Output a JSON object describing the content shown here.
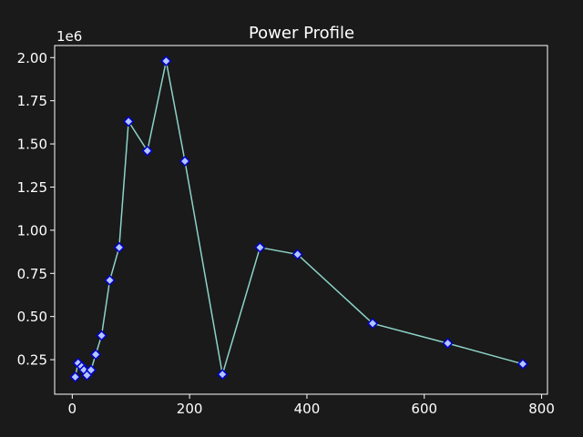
{
  "chart_data": {
    "type": "line",
    "title": "Power Profile",
    "xlabel": "",
    "ylabel": "",
    "y_multiplier_label": "1e6",
    "xlim": [
      -30,
      810
    ],
    "ylim": [
      50000,
      2070000
    ],
    "x_ticks": [
      0,
      200,
      400,
      600,
      800
    ],
    "x_tick_labels": [
      "0",
      "200",
      "400",
      "600",
      "800"
    ],
    "y_ticks": [
      250000,
      500000,
      750000,
      1000000,
      1250000,
      1500000,
      1750000,
      2000000
    ],
    "y_tick_labels": [
      "0.25",
      "0.50",
      "0.75",
      "1.00",
      "1.25",
      "1.50",
      "1.75",
      "2.00"
    ],
    "grid": false,
    "colors": {
      "background": "#1a1a1a",
      "line": "#8dd3c7",
      "marker_fill": "#b3c6ff",
      "marker_edge": "#0000cc",
      "axes": "#ffffff",
      "text": "#ffffff"
    },
    "marker": "diamond",
    "series": [
      {
        "x": [
          5,
          10,
          16,
          20,
          25,
          32,
          40,
          50,
          64,
          80,
          96,
          128,
          160,
          192,
          256,
          320,
          384,
          512,
          640,
          768
        ],
        "values": [
          150000,
          230000,
          210000,
          190000,
          160000,
          190000,
          280000,
          390000,
          710000,
          900000,
          1630000,
          1460000,
          1980000,
          1400000,
          165000,
          900000,
          860000,
          460000,
          345000,
          225000
        ]
      }
    ]
  }
}
